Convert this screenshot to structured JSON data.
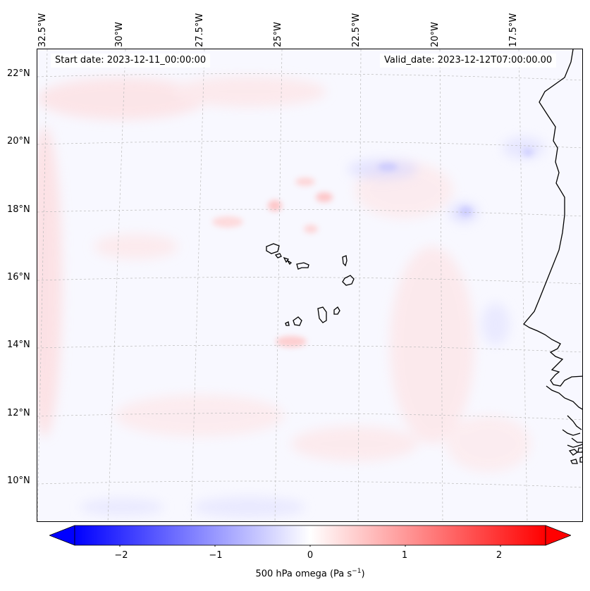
{
  "map": {
    "start_date": "Start date: 2023-12-11_00:00:00",
    "valid_date": "Valid_date: 2023-12-12T07:00:00.00",
    "longitude_labels": [
      "32.5°W",
      "30°W",
      "27.5°W",
      "25°W",
      "22.5°W",
      "20°W",
      "17.5°W"
    ],
    "latitude_labels": [
      "22°N",
      "20°N",
      "18°N",
      "16°N",
      "14°N",
      "12°N",
      "10°N"
    ],
    "field_name": "500 hPa omega",
    "colormap": "bwr",
    "colors": {
      "min": "#0000ff",
      "mid": "#ffffff",
      "max": "#ff0000",
      "coastline": "#000000",
      "gridline": "#bbbbbb"
    }
  },
  "colorbar": {
    "ticks": [
      "−2",
      "−1",
      "0",
      "1",
      "2"
    ],
    "range": [
      -2.6,
      2.6
    ],
    "label_main": "500 hPa omega (Pa s",
    "label_sup": "−1",
    "label_end": ")"
  }
}
